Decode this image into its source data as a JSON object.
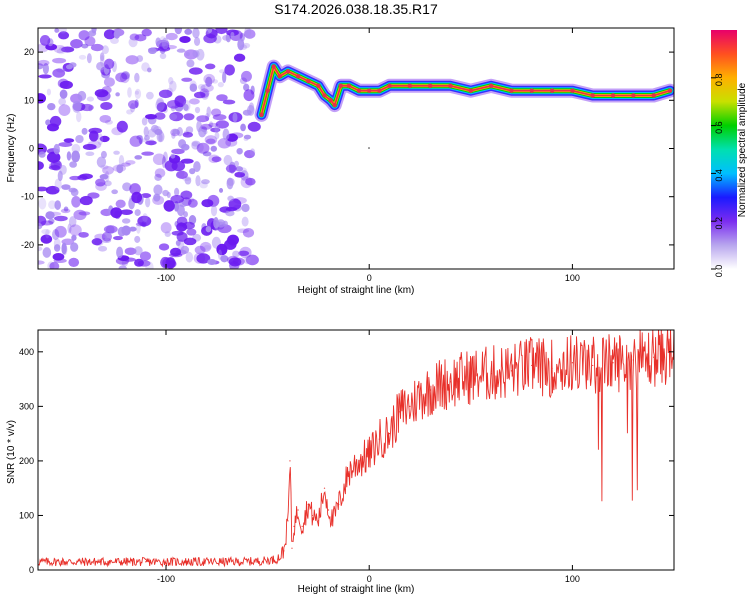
{
  "page_title": "S174.2026.038.18.35.R17",
  "chart_data": [
    {
      "type": "heatmap",
      "title": "S174.2026.038.18.35.R17",
      "xlabel": "Height of straight line (km)",
      "ylabel": "Frequency (Hz)",
      "xlim": [
        -163,
        150
      ],
      "ylim": [
        -25,
        25
      ],
      "x_ticks": [
        -100,
        0,
        100
      ],
      "x_tick_labels": [
        "-100",
        "0",
        "100"
      ],
      "y_ticks": [
        -20,
        -10,
        0,
        10,
        20
      ],
      "y_tick_labels": [
        "-20",
        "-10",
        "0",
        "10",
        "20"
      ],
      "noise_region_x": [
        -163,
        -53
      ],
      "ridge": {
        "x": [
          -53,
          -50,
          -47,
          -44,
          -40,
          -35,
          -30,
          -25,
          -22,
          -19,
          -17,
          -14,
          -10,
          -5,
          0,
          5,
          10,
          20,
          30,
          40,
          50,
          60,
          70,
          80,
          90,
          100,
          110,
          120,
          130,
          140,
          148
        ],
        "y": [
          7,
          12,
          17,
          15,
          16,
          15,
          14,
          13,
          11,
          10,
          9,
          13,
          13,
          12,
          12,
          12,
          13,
          13,
          13,
          13,
          12,
          13,
          12,
          12,
          12,
          12,
          11,
          11,
          11,
          11,
          12
        ]
      },
      "colorbar": {
        "label": "Normalized spectral amplitude",
        "ticks": [
          0.0,
          0.2,
          0.4,
          0.6,
          0.8
        ],
        "tick_labels": [
          "0.0",
          "0.2",
          "0.4",
          "0.6",
          "0.8"
        ],
        "colors": [
          "#ffffff",
          "#b8a6ee",
          "#7b2cf0",
          "#1a1aff",
          "#00bfff",
          "#00e0b0",
          "#00d000",
          "#c8e000",
          "#ffb000",
          "#ff5020",
          "#e8006a"
        ]
      },
      "grid": false,
      "legend": "none"
    },
    {
      "type": "line",
      "title": "",
      "xlabel": "Height of straight line (km)",
      "ylabel": "SNR (10 * v/v)",
      "xlim": [
        -163,
        150
      ],
      "ylim": [
        0,
        440
      ],
      "x_ticks": [
        -100,
        0,
        100
      ],
      "x_tick_labels": [
        "-100",
        "0",
        "100"
      ],
      "y_ticks": [
        0,
        100,
        200,
        300,
        400
      ],
      "y_tick_labels": [
        "0",
        "100",
        "200",
        "300",
        "400"
      ],
      "series": [
        {
          "color": "#e8302a",
          "x": [
            -163,
            -150,
            -130,
            -110,
            -90,
            -70,
            -55,
            -45,
            -42,
            -40,
            -39,
            -38,
            -37,
            -35,
            -33,
            -30,
            -28,
            -25,
            -22,
            -20,
            -18,
            -15,
            -10,
            -5,
            0,
            5,
            10,
            15,
            20,
            25,
            30,
            35,
            40,
            50,
            60,
            70,
            80,
            90,
            100,
            110,
            120,
            130,
            140,
            150
          ],
          "y": [
            15,
            15,
            15,
            15,
            15,
            15,
            16,
            20,
            35,
            90,
            200,
            40,
            80,
            110,
            80,
            120,
            100,
            90,
            150,
            110,
            90,
            120,
            180,
            200,
            210,
            240,
            250,
            290,
            300,
            320,
            330,
            340,
            345,
            355,
            360,
            365,
            375,
            370,
            380,
            375,
            380,
            385,
            390,
            400
          ]
        }
      ],
      "grid": false,
      "legend": "none"
    }
  ]
}
